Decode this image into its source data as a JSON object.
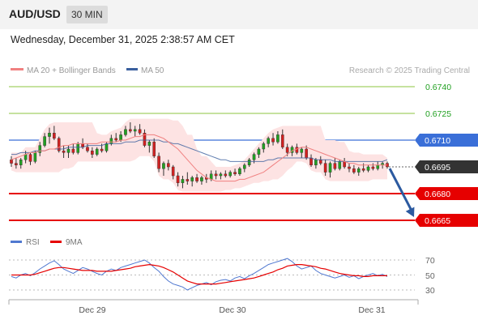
{
  "header": {
    "symbol": "AUD/USD",
    "timeframe": "30 MIN"
  },
  "datetime": "Wednesday, December 31, 2025 2:38:57 AM CET",
  "colors": {
    "ma20": "#f08080",
    "ma50": "#3a5f9e",
    "bull": "#22a022",
    "bear": "#d22020",
    "resistance": "#8cc63f",
    "pivot": "#3a6fd8",
    "support": "#e60000",
    "current": "#333333",
    "arrow": "#2c5aa0",
    "rsi": "#5078d0",
    "rsi_ma": "#e60000"
  },
  "legend": {
    "ma20": "MA 20 + Bollinger Bands",
    "ma50": "MA 50",
    "credit": "Research © 2025 Trading Central"
  },
  "levels": {
    "resistance": [
      "0.6740",
      "0.6725"
    ],
    "pivot": "0.6710",
    "current": "0.6695",
    "support": [
      "0.6680",
      "0.6665"
    ]
  },
  "rsi_legend": {
    "rsi": "RSI",
    "ma": "9MA"
  },
  "rsi_ticks": [
    "70",
    "50",
    "30"
  ],
  "x_ticks": [
    "Dec 29",
    "Dec 30",
    "Dec 31"
  ],
  "chart_data": {
    "type": "candlestick",
    "series": [
      {
        "name": "MA 20 + Bollinger Bands",
        "values": [
          0.6699,
          0.67,
          0.6701,
          0.6702,
          0.6703,
          0.6703,
          0.6704,
          0.6704,
          0.6705,
          0.6705,
          0.6706,
          0.6707,
          0.6707,
          0.6708,
          0.6708,
          0.6708,
          0.6708,
          0.6708,
          0.6708,
          0.6709,
          0.6709,
          0.6709,
          0.6709,
          0.671,
          0.671,
          0.6711,
          0.6712,
          0.6712,
          0.6713,
          0.6713,
          0.6713,
          0.6712,
          0.6711,
          0.6709,
          0.6707,
          0.6705,
          0.6702,
          0.6699,
          0.6696,
          0.6693,
          0.6691,
          0.6689,
          0.6688,
          0.6687,
          0.6687,
          0.6687,
          0.6687,
          0.6687,
          0.6688,
          0.6688,
          0.6689,
          0.669,
          0.6691,
          0.6692,
          0.6694,
          0.6696,
          0.6698,
          0.67,
          0.6702,
          0.6704,
          0.6705,
          0.6706,
          0.6706,
          0.6705,
          0.6704,
          0.6703,
          0.6702,
          0.6701,
          0.67,
          0.6699,
          0.6698,
          0.6697,
          0.6697,
          0.6696,
          0.6696,
          0.6696,
          0.6696,
          0.6696,
          0.6696,
          0.6696
        ]
      },
      {
        "name": "MA 50",
        "values": [
          0.6702,
          0.6702,
          0.6703,
          0.6703,
          0.6703,
          0.6704,
          0.6704,
          0.6704,
          0.6705,
          0.6705,
          0.6705,
          0.6705,
          0.6706,
          0.6706,
          0.6706,
          0.6706,
          0.6707,
          0.6707,
          0.6707,
          0.6707,
          0.6708,
          0.6708,
          0.6708,
          0.6708,
          0.6709,
          0.6709,
          0.6709,
          0.671,
          0.671,
          0.671,
          0.671,
          0.671,
          0.6709,
          0.6709,
          0.6708,
          0.6708,
          0.6707,
          0.6706,
          0.6705,
          0.6704,
          0.6703,
          0.6702,
          0.6701,
          0.67,
          0.6699,
          0.6699,
          0.6698,
          0.6698,
          0.6698,
          0.6698,
          0.6698,
          0.6698,
          0.6698,
          0.6698,
          0.6699,
          0.6699,
          0.67,
          0.67,
          0.67,
          0.67,
          0.67,
          0.67,
          0.67,
          0.67,
          0.6699,
          0.6699,
          0.6699,
          0.6699,
          0.6698,
          0.6698,
          0.6698,
          0.6698,
          0.6698,
          0.6698,
          0.6698,
          0.6698,
          0.6698,
          0.6698,
          0.6698,
          0.6699
        ]
      },
      {
        "name": "RSI",
        "values": [
          48,
          46,
          50,
          52,
          49,
          53,
          58,
          62,
          66,
          69,
          64,
          58,
          55,
          52,
          56,
          60,
          58,
          55,
          52,
          50,
          55,
          58,
          56,
          60,
          62,
          64,
          66,
          68,
          70,
          66,
          60,
          55,
          48,
          42,
          38,
          36,
          34,
          30,
          33,
          36,
          38,
          40,
          37,
          41,
          43,
          44,
          42,
          46,
          48,
          45,
          49,
          52,
          56,
          60,
          64,
          66,
          68,
          70,
          72,
          68,
          62,
          58,
          60,
          62,
          56,
          52,
          50,
          48,
          46,
          48,
          50,
          47,
          49,
          45,
          48,
          50,
          52,
          49,
          51,
          48
        ]
      },
      {
        "name": "9MA",
        "values": [
          50,
          50,
          50,
          50,
          50,
          51,
          53,
          55,
          57,
          59,
          60,
          60,
          59,
          58,
          57,
          56,
          56,
          56,
          55,
          55,
          55,
          55,
          56,
          57,
          58,
          59,
          61,
          62,
          63,
          64,
          63,
          62,
          60,
          57,
          54,
          50,
          46,
          42,
          40,
          38,
          38,
          38,
          38,
          38,
          39,
          40,
          41,
          42,
          43,
          44,
          45,
          46,
          48,
          50,
          52,
          54,
          57,
          59,
          62,
          63,
          64,
          64,
          63,
          62,
          61,
          59,
          58,
          56,
          54,
          52,
          51,
          50,
          49,
          49,
          48,
          48,
          49,
          49,
          49,
          49
        ]
      }
    ],
    "ohlc": [
      [
        0.6699,
        0.6701,
        0.6695,
        0.6697
      ],
      [
        0.6697,
        0.67,
        0.6694,
        0.6696
      ],
      [
        0.6696,
        0.67,
        0.6694,
        0.6699
      ],
      [
        0.6699,
        0.6704,
        0.6697,
        0.6702
      ],
      [
        0.6702,
        0.6703,
        0.6696,
        0.6698
      ],
      [
        0.6698,
        0.6704,
        0.6697,
        0.6703
      ],
      [
        0.6703,
        0.6709,
        0.6701,
        0.6707
      ],
      [
        0.6707,
        0.6714,
        0.6706,
        0.6712
      ],
      [
        0.6712,
        0.6717,
        0.6708,
        0.6714
      ],
      [
        0.6714,
        0.6718,
        0.671,
        0.6711
      ],
      [
        0.6711,
        0.6712,
        0.6703,
        0.6704
      ],
      [
        0.6704,
        0.6707,
        0.67,
        0.6703
      ],
      [
        0.6703,
        0.6707,
        0.67,
        0.6705
      ],
      [
        0.6705,
        0.6708,
        0.6702,
        0.6703
      ],
      [
        0.6703,
        0.6709,
        0.6702,
        0.6708
      ],
      [
        0.6708,
        0.6711,
        0.6705,
        0.6706
      ],
      [
        0.6706,
        0.6708,
        0.6703,
        0.6704
      ],
      [
        0.6704,
        0.6706,
        0.67,
        0.6702
      ],
      [
        0.6702,
        0.6706,
        0.6701,
        0.6705
      ],
      [
        0.6705,
        0.6708,
        0.6703,
        0.6704
      ],
      [
        0.6704,
        0.6709,
        0.6703,
        0.6708
      ],
      [
        0.6708,
        0.6713,
        0.6707,
        0.6711
      ],
      [
        0.6711,
        0.6714,
        0.6709,
        0.671
      ],
      [
        0.671,
        0.6715,
        0.6709,
        0.6713
      ],
      [
        0.6713,
        0.6718,
        0.6712,
        0.6716
      ],
      [
        0.6716,
        0.672,
        0.6714,
        0.6715
      ],
      [
        0.6715,
        0.6718,
        0.6712,
        0.6716
      ],
      [
        0.6716,
        0.6719,
        0.6713,
        0.6714
      ],
      [
        0.6714,
        0.6716,
        0.6706,
        0.6707
      ],
      [
        0.6707,
        0.671,
        0.6703,
        0.6709
      ],
      [
        0.6709,
        0.6711,
        0.67,
        0.6701
      ],
      [
        0.6701,
        0.6703,
        0.6692,
        0.6694
      ],
      [
        0.6694,
        0.6698,
        0.669,
        0.6697
      ],
      [
        0.6697,
        0.6699,
        0.6693,
        0.6695
      ],
      [
        0.6695,
        0.6696,
        0.6688,
        0.669
      ],
      [
        0.669,
        0.6692,
        0.6684,
        0.6686
      ],
      [
        0.6686,
        0.669,
        0.6683,
        0.6688
      ],
      [
        0.6688,
        0.6692,
        0.6685,
        0.6687
      ],
      [
        0.6687,
        0.669,
        0.6684,
        0.6689
      ],
      [
        0.6689,
        0.6691,
        0.6686,
        0.6687
      ],
      [
        0.6687,
        0.669,
        0.6685,
        0.6689
      ],
      [
        0.6689,
        0.6691,
        0.6686,
        0.6688
      ],
      [
        0.6688,
        0.6693,
        0.6687,
        0.6691
      ],
      [
        0.6691,
        0.6693,
        0.6688,
        0.669
      ],
      [
        0.669,
        0.6692,
        0.6688,
        0.6691
      ],
      [
        0.6691,
        0.6693,
        0.6689,
        0.669
      ],
      [
        0.669,
        0.6693,
        0.6689,
        0.6692
      ],
      [
        0.6692,
        0.6694,
        0.669,
        0.6691
      ],
      [
        0.6691,
        0.6695,
        0.669,
        0.6694
      ],
      [
        0.6694,
        0.6697,
        0.6692,
        0.6696
      ],
      [
        0.6696,
        0.67,
        0.6695,
        0.6699
      ],
      [
        0.6699,
        0.6703,
        0.6697,
        0.6702
      ],
      [
        0.6702,
        0.6706,
        0.67,
        0.6705
      ],
      [
        0.6705,
        0.6709,
        0.6703,
        0.6708
      ],
      [
        0.6708,
        0.6712,
        0.6706,
        0.6711
      ],
      [
        0.6711,
        0.6714,
        0.6707,
        0.6709
      ],
      [
        0.6709,
        0.6715,
        0.6708,
        0.6713
      ],
      [
        0.6713,
        0.6716,
        0.6705,
        0.6706
      ],
      [
        0.6706,
        0.6708,
        0.6701,
        0.6703
      ],
      [
        0.6703,
        0.6707,
        0.6701,
        0.6706
      ],
      [
        0.6706,
        0.6708,
        0.6702,
        0.6703
      ],
      [
        0.6703,
        0.6706,
        0.67,
        0.6705
      ],
      [
        0.6705,
        0.6707,
        0.6699,
        0.67
      ],
      [
        0.67,
        0.6702,
        0.6695,
        0.6696
      ],
      [
        0.6696,
        0.67,
        0.6694,
        0.6699
      ],
      [
        0.6699,
        0.6701,
        0.6696,
        0.6697
      ],
      [
        0.6697,
        0.6699,
        0.669,
        0.6692
      ],
      [
        0.6692,
        0.6698,
        0.6689,
        0.6697
      ],
      [
        0.6697,
        0.67,
        0.6693,
        0.6694
      ],
      [
        0.6694,
        0.6699,
        0.6693,
        0.6698
      ],
      [
        0.6698,
        0.67,
        0.6694,
        0.6695
      ],
      [
        0.6695,
        0.6697,
        0.6692,
        0.6694
      ],
      [
        0.6694,
        0.6696,
        0.6691,
        0.6692
      ],
      [
        0.6692,
        0.6695,
        0.669,
        0.6694
      ],
      [
        0.6694,
        0.6697,
        0.6692,
        0.6693
      ],
      [
        0.6693,
        0.6696,
        0.6692,
        0.6695
      ],
      [
        0.6695,
        0.6697,
        0.6693,
        0.6694
      ],
      [
        0.6694,
        0.6698,
        0.6693,
        0.6696
      ],
      [
        0.6696,
        0.6698,
        0.6694,
        0.6697
      ],
      [
        0.6697,
        0.6698,
        0.6694,
        0.6695
      ]
    ],
    "ylim": [
      0.6662,
      0.6745
    ],
    "rsi_ylim": [
      20,
      80
    ],
    "legend": "top-left",
    "grid": false
  }
}
